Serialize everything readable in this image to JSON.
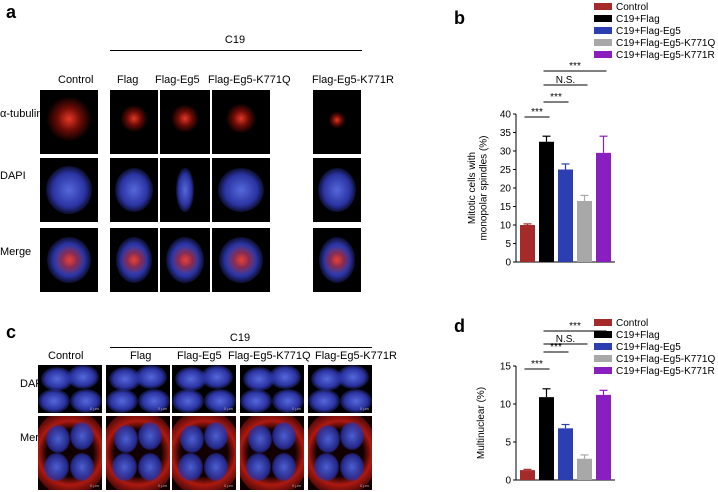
{
  "panel_a": {
    "letter": "a",
    "group_label": "C19",
    "columns": [
      "Control",
      "Flag",
      "Flag-Eg5",
      "Flag-Eg5-K771Q",
      "Flag-Eg5-K771R"
    ],
    "rows": [
      "α-tubulin",
      "DAPI",
      "Merge"
    ]
  },
  "panel_c": {
    "letter": "c",
    "group_label": "C19",
    "columns": [
      "Control",
      "Flag",
      "Flag-Eg5",
      "Flag-Eg5-K771Q",
      "Flag-Eg5-K771R"
    ],
    "rows": [
      "DAPI",
      "Merge"
    ],
    "scale_label": "0 µm"
  },
  "panel_b": {
    "letter": "b",
    "ylabel_line1": "Mitotic cells with",
    "ylabel_line2": "monopolar spindles (%)",
    "sig": [
      "***",
      "N.S.",
      "***",
      "***"
    ]
  },
  "panel_d": {
    "letter": "d",
    "ylabel": "Multinuclear (%)",
    "sig": [
      "***",
      "N.S.",
      "***",
      "***"
    ]
  },
  "legend": [
    "Control",
    "C19+Flag",
    "C19+Flag-Eg5",
    "C19+Flag-Eg5-K771Q",
    "C19+Flag-Eg5-K771R"
  ],
  "colors": {
    "control": "#a52a2a",
    "flag": "#000000",
    "eg5": "#2b3fb0",
    "k771q": "#a8a8a8",
    "k771r": "#8a1fc0"
  },
  "chart_data": [
    {
      "type": "bar",
      "panel": "b",
      "categories": [
        "Control",
        "C19+Flag",
        "C19+Flag-Eg5",
        "C19+Flag-Eg5-K771Q",
        "C19+Flag-Eg5-K771R"
      ],
      "values": [
        10,
        32.5,
        25,
        16.5,
        29.5
      ],
      "errors": [
        0.3,
        1.5,
        1.5,
        1.5,
        4.5
      ],
      "ylabel": "Mitotic cells with monopolar spindles (%)",
      "ylim": [
        0,
        40
      ],
      "yticks": [
        "0",
        "5",
        "10",
        "15",
        "20",
        "25",
        "30",
        "35",
        "40"
      ],
      "legend_position": "top-right",
      "significance": [
        {
          "pair": [
            0,
            1
          ],
          "label": "***"
        },
        {
          "pair": [
            1,
            2
          ],
          "label": "***"
        },
        {
          "pair": [
            1,
            3
          ],
          "label": "N.S."
        },
        {
          "pair": [
            1,
            4
          ],
          "label": "***"
        }
      ]
    },
    {
      "type": "bar",
      "panel": "d",
      "categories": [
        "Control",
        "C19+Flag",
        "C19+Flag-Eg5",
        "C19+Flag-Eg5-K771Q",
        "C19+Flag-Eg5-K771R"
      ],
      "values": [
        1.3,
        10.9,
        6.8,
        2.8,
        11.2
      ],
      "errors": [
        0.1,
        1.1,
        0.5,
        0.5,
        0.6
      ],
      "ylabel": "Multinuclear (%)",
      "ylim": [
        0,
        15
      ],
      "yticks": [
        "0",
        "5",
        "10",
        "15"
      ],
      "legend_position": "top-right",
      "significance": [
        {
          "pair": [
            0,
            1
          ],
          "label": "***"
        },
        {
          "pair": [
            1,
            2
          ],
          "label": "***"
        },
        {
          "pair": [
            1,
            3
          ],
          "label": "N.S."
        },
        {
          "pair": [
            1,
            4
          ],
          "label": "***"
        }
      ]
    }
  ]
}
